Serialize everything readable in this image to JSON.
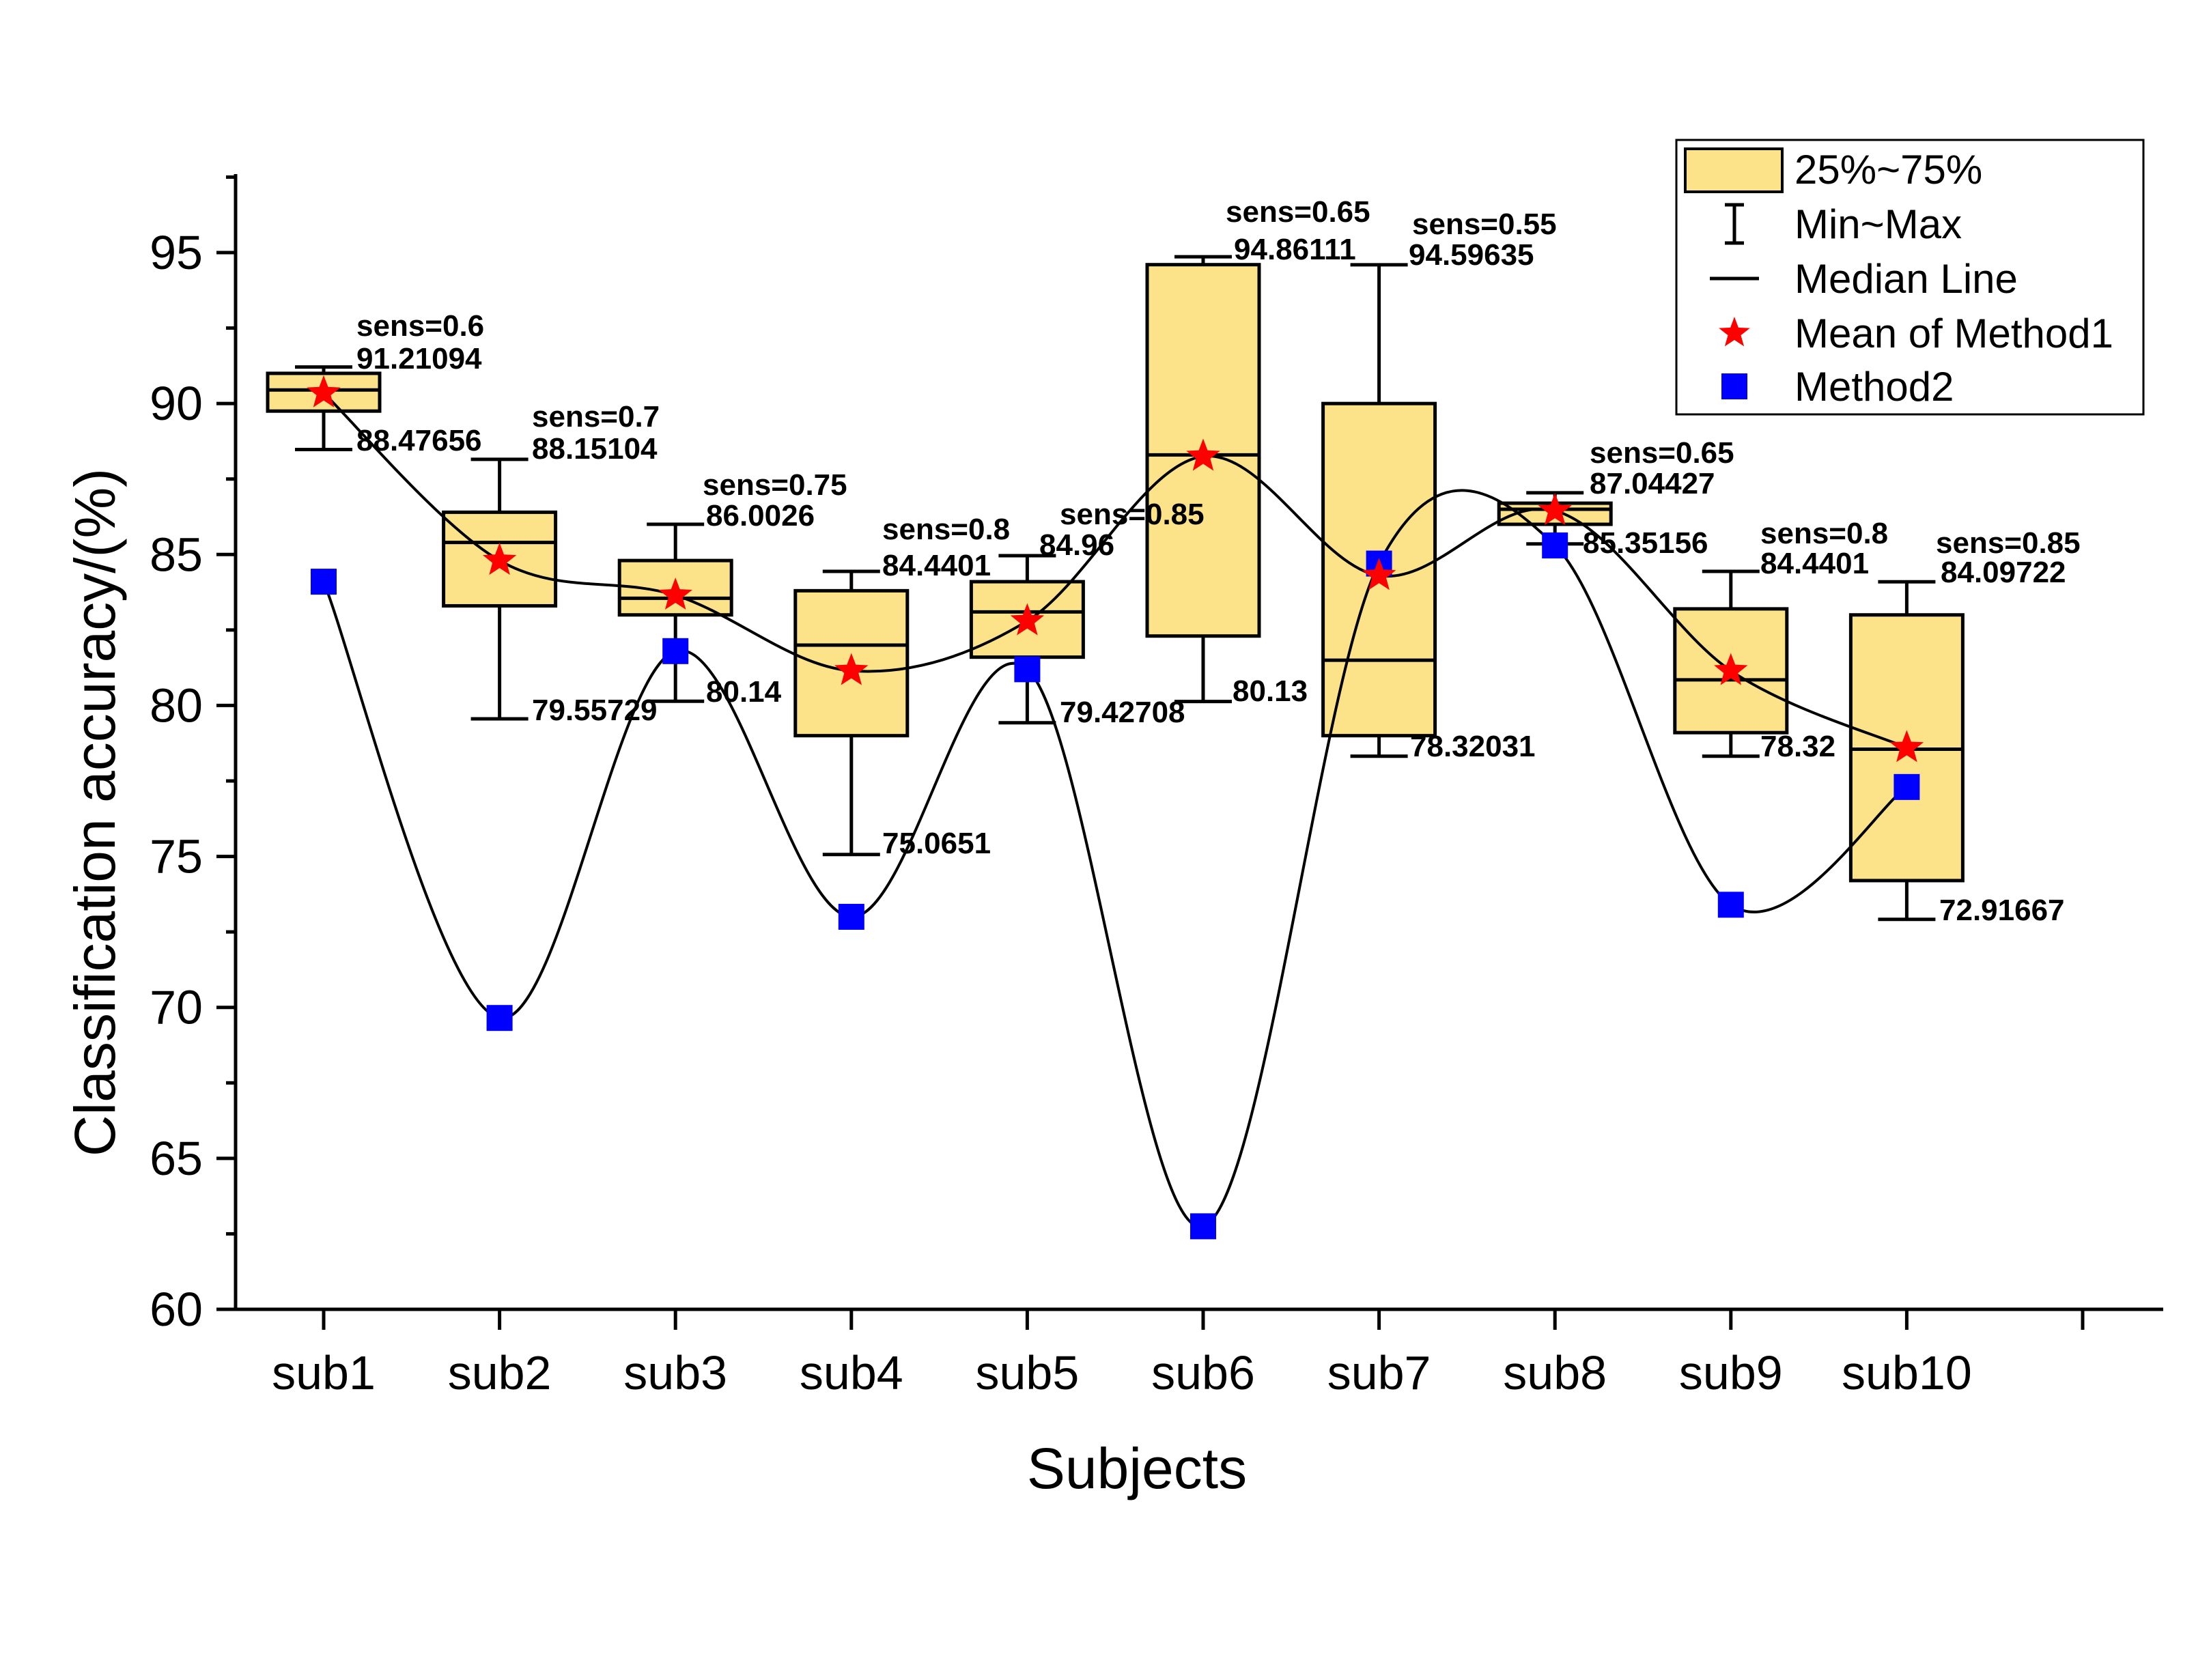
{
  "chart_data": {
    "type": "box",
    "xlabel": "Subjects",
    "ylabel": "Classification accuracy/(%)",
    "ylim": [
      60,
      97.5
    ],
    "yticks": [
      60,
      65,
      70,
      75,
      80,
      85,
      90,
      95
    ],
    "categories": [
      "sub1",
      "sub2",
      "sub3",
      "sub4",
      "sub5",
      "sub6",
      "sub7",
      "sub8",
      "sub9",
      "sub10"
    ],
    "boxes": [
      {
        "min": 88.47656,
        "q1": 89.75,
        "median": 90.45,
        "q3": 91.0,
        "max": 91.21094
      },
      {
        "min": 79.55729,
        "q1": 83.3,
        "median": 85.4,
        "q3": 86.4,
        "max": 88.15104
      },
      {
        "min": 80.14,
        "q1": 83.0,
        "median": 83.55,
        "q3": 84.8,
        "max": 86.0026
      },
      {
        "min": 75.0651,
        "q1": 79.0,
        "median": 82.0,
        "q3": 83.8,
        "max": 84.4401
      },
      {
        "min": 79.42708,
        "q1": 81.6,
        "median": 83.1,
        "q3": 84.1,
        "max": 84.96
      },
      {
        "min": 80.13,
        "q1": 82.3,
        "median": 88.3,
        "q3": 94.6,
        "max": 94.86111
      },
      {
        "min": 78.32031,
        "q1": 79.0,
        "median": 81.5,
        "q3": 90.0,
        "max": 94.59635
      },
      {
        "min": 85.35156,
        "q1": 86.0,
        "median": 86.5,
        "q3": 86.7,
        "max": 87.04427
      },
      {
        "min": 78.32,
        "q1": 79.1,
        "median": 80.85,
        "q3": 83.2,
        "max": 84.4401
      },
      {
        "min": 72.91667,
        "q1": 74.2,
        "median": 78.55,
        "q3": 83.0,
        "max": 84.09722
      }
    ],
    "mean_method1": [
      90.35,
      84.8,
      83.65,
      81.15,
      82.8,
      88.25,
      84.3,
      86.45,
      81.15,
      78.6
    ],
    "method2": [
      84.1,
      69.65,
      81.8,
      73.0,
      81.2,
      62.75,
      84.7,
      85.3,
      73.4,
      77.3
    ],
    "annotations": {
      "sens": [
        "sens=0.6",
        "sens=0.7",
        "sens=0.75",
        "sens=0.8",
        "sens=0.85",
        "sens=0.65",
        "sens=0.55",
        "sens=0.65",
        "sens=0.8",
        "sens=0.85"
      ],
      "max_labels": [
        "91.21094",
        "88.15104",
        "86.0026",
        "84.4401",
        "84.96",
        "94.86111",
        "94.59635",
        "87.04427",
        "84.4401",
        "84.09722"
      ],
      "min_labels": [
        "88.47656",
        "79.55729",
        "80.14",
        "75.0651",
        "79.42708",
        "80.13",
        "78.32031",
        "85.35156",
        "78.32",
        "72.91667"
      ]
    },
    "legend": {
      "position": "top-right",
      "items": [
        "25%~75%",
        "Min~Max",
        "Median Line",
        "Mean of Method1",
        "Method2"
      ]
    },
    "colors": {
      "box_fill": "#FCE38A",
      "box_stroke": "#000000",
      "mean_marker": "#FF0000",
      "method2_marker": "#0000FF",
      "line": "#000000"
    }
  }
}
